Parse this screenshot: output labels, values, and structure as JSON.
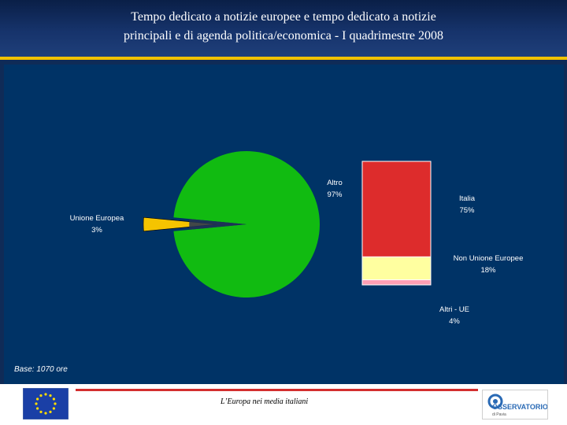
{
  "header": {
    "title_line1": "Tempo dedicato a notizie europee e tempo dedicato a notizie",
    "title_line2": "principali e di agenda politica/economica - I quadrimestre 2008"
  },
  "footer": {
    "base_note": "Base: 1070 ore",
    "caption": "L’Europa nei media italiani",
    "logo_text": "OSSERVATORIO",
    "logo_subtext": "di Pavia"
  },
  "colors": {
    "background": "#003366",
    "pie_main": "#11bb11",
    "pie_slice": "#f5c400",
    "bar_italia": "#dd2c2c",
    "bar_non_ue": "#ffffa0",
    "bar_altri_ue": "#ff9fb4"
  },
  "chart_data": {
    "type": "pie",
    "pie": {
      "slices": [
        {
          "label": "Altro",
          "value": 97,
          "value_label": "97%"
        },
        {
          "label": "Unione Europea",
          "value": 3,
          "value_label": "3%"
        }
      ]
    },
    "breakdown_bar": {
      "type": "stacked_bar",
      "of_slice": "Altro",
      "segments": [
        {
          "label": "Italia",
          "value": 75,
          "value_label": "75%"
        },
        {
          "label": "Non Unione Europee",
          "value": 18,
          "value_label": "18%"
        },
        {
          "label": "Altri - UE",
          "value": 4,
          "value_label": "4%"
        }
      ]
    }
  }
}
